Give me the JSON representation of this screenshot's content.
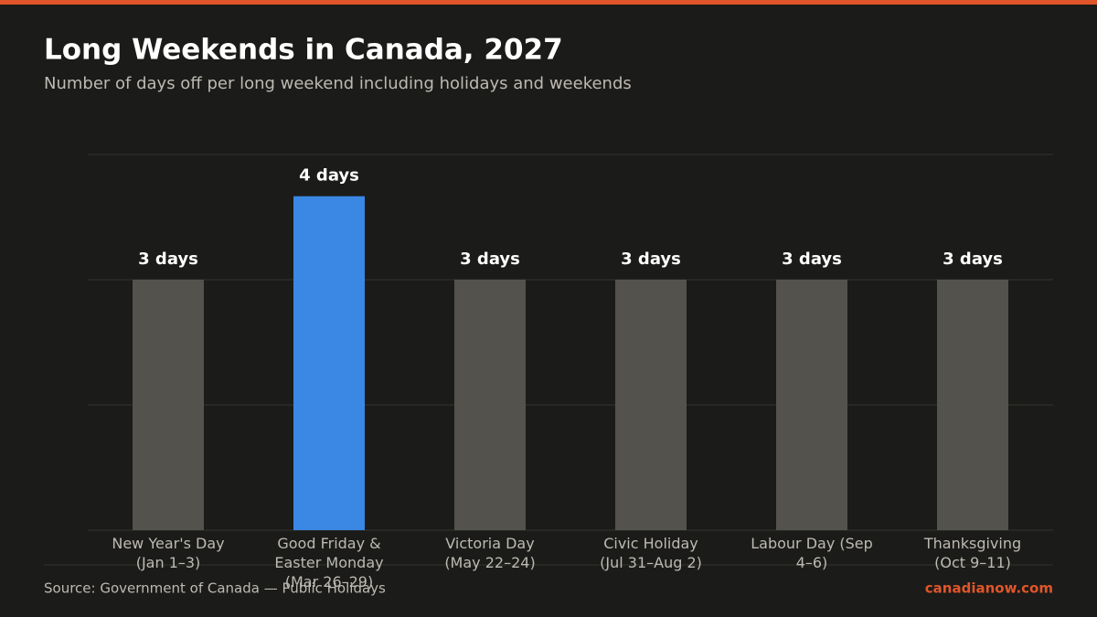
{
  "chart_data": {
    "type": "bar",
    "title": "Long Weekends in Canada, 2027",
    "subtitle": "Number of days off per long weekend including holidays and weekends",
    "categories": [
      "New Year's Day (Jan 1–3)",
      "Good Friday & Easter Monday (Mar 26–29)",
      "Victoria Day (May 22–24)",
      "Civic Holiday (Jul 31–Aug 2)",
      "Labour Day (Sep 4–6)",
      "Thanksgiving (Oct 9–11)"
    ],
    "values": [
      3,
      4,
      3,
      3,
      3,
      3
    ],
    "value_labels": [
      "3 days",
      "4 days",
      "3 days",
      "3 days",
      "3 days",
      "3 days"
    ],
    "colors": [
      "#53524d",
      "#3a87e4",
      "#53524d",
      "#53524d",
      "#53524d",
      "#53524d"
    ],
    "ylim": [
      0,
      4.5
    ],
    "yticks": [
      0,
      1.5,
      3,
      4.5
    ],
    "grid": true,
    "source": "Source: Government of Canada — Public Holidays",
    "site": "canadianow.com"
  }
}
